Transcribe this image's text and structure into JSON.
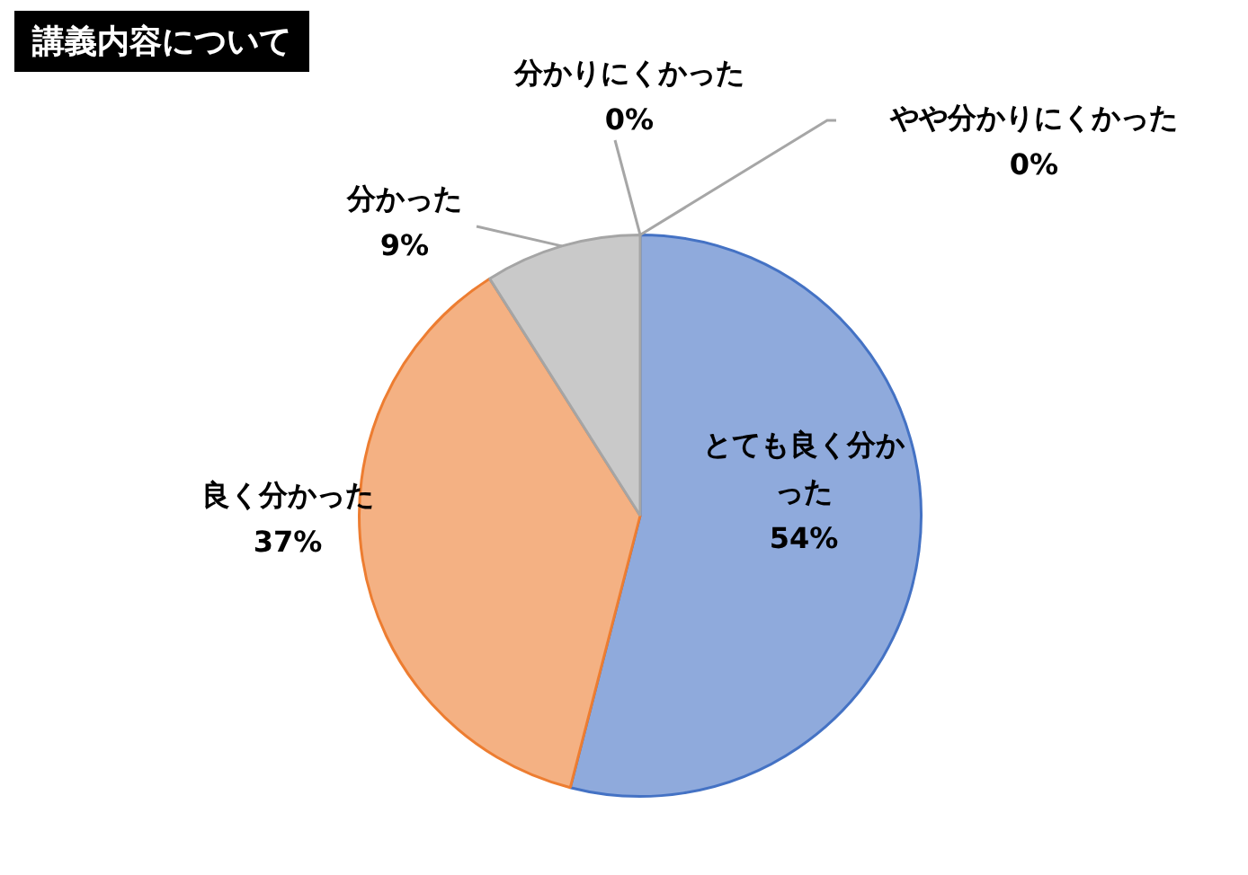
{
  "chart_data": {
    "type": "pie",
    "title": "講義内容について",
    "categories": [
      "とても良く分かった",
      "良く分かった",
      "分かった",
      "やや分かりにくかった",
      "分かりにくかった"
    ],
    "values": [
      54,
      37,
      9,
      0,
      0
    ],
    "colors": [
      "#8faadc",
      "#f4b183",
      "#c9c9c9",
      "#ffc000",
      "#5b9bd5"
    ],
    "value_labels": [
      "54%",
      "37%",
      "9%",
      "0%",
      "0%"
    ],
    "legend": false
  }
}
